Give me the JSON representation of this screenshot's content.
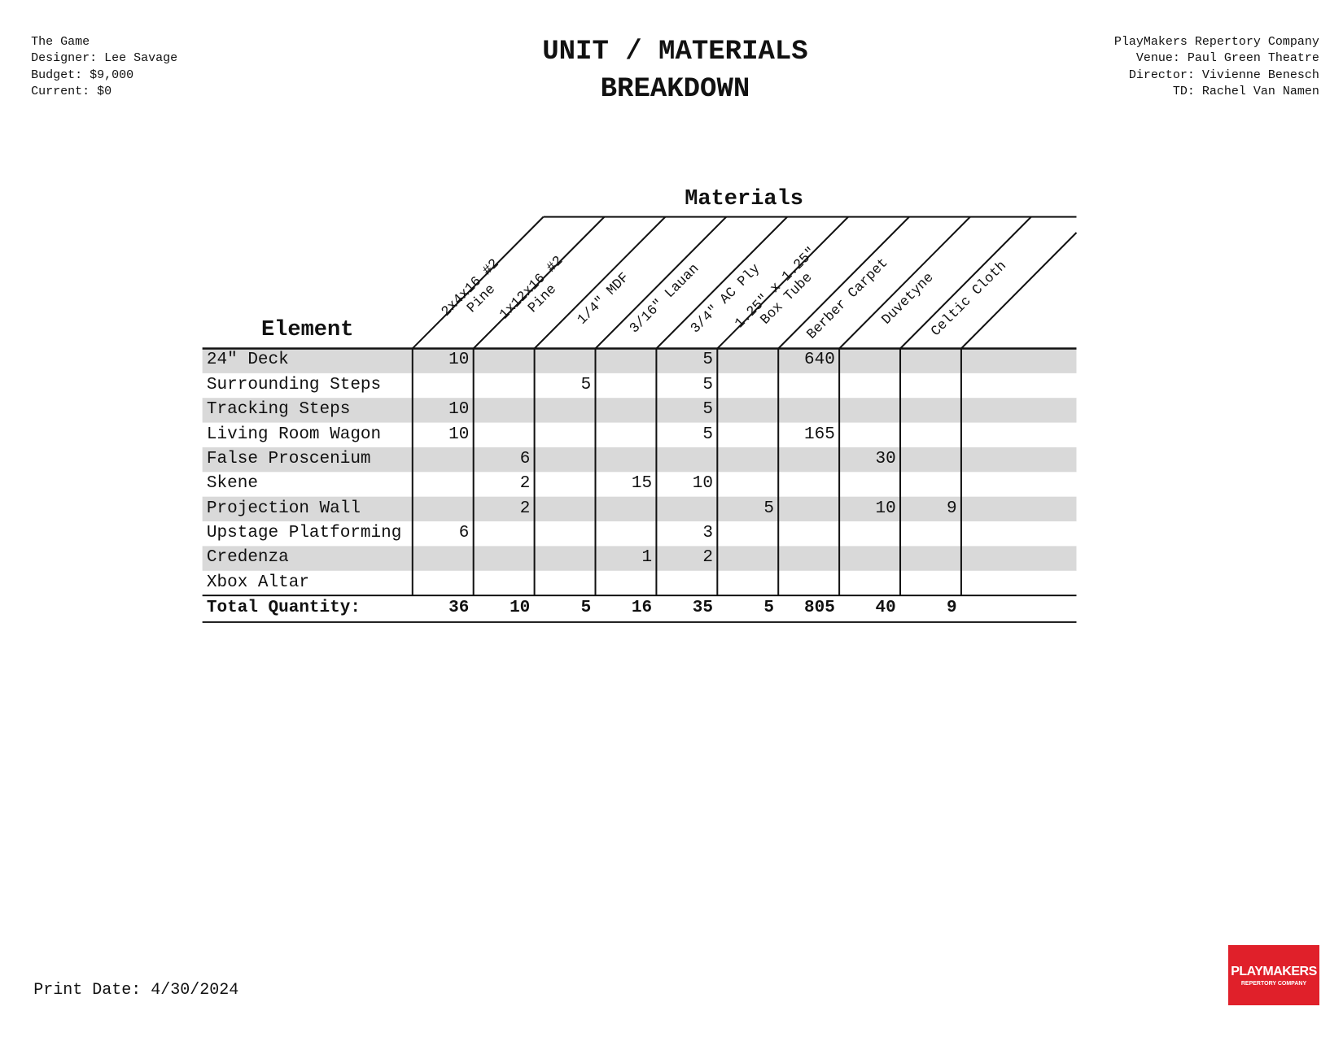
{
  "header": {
    "left": [
      "The Game",
      "Designer: Lee Savage",
      "Budget: $9,000",
      "Current: $0"
    ],
    "title": [
      "UNIT / MATERIALS",
      "BREAKDOWN"
    ],
    "right": [
      "PlayMakers Repertory Company",
      "Venue: Paul Green Theatre",
      "Director: Vivienne Benesch",
      "TD: Rachel Van Namen"
    ]
  },
  "table": {
    "materials_label": "Materials",
    "element_label": "Element",
    "columns": [
      "2x4x16 #2 Pine",
      "1x12x16 #2 Pine",
      "1/4\" MDF",
      "3/16\" Lauan",
      "3/4\" AC Ply",
      "1.25\" x 1.25\" Box Tube",
      "Berber Carpet",
      "Duvetyne",
      "Celtic Cloth"
    ],
    "rows": [
      {
        "element": "24\" Deck",
        "values": [
          10,
          null,
          null,
          null,
          5,
          null,
          640,
          null,
          null
        ]
      },
      {
        "element": "Surrounding Steps",
        "values": [
          null,
          null,
          5,
          null,
          5,
          null,
          null,
          null,
          null
        ]
      },
      {
        "element": "Tracking Steps",
        "values": [
          10,
          null,
          null,
          null,
          5,
          null,
          null,
          null,
          null
        ]
      },
      {
        "element": "Living Room Wagon",
        "values": [
          10,
          null,
          null,
          null,
          5,
          null,
          165,
          null,
          null
        ]
      },
      {
        "element": "False Proscenium",
        "values": [
          null,
          6,
          null,
          null,
          null,
          null,
          null,
          30,
          null
        ]
      },
      {
        "element": "Skene",
        "values": [
          null,
          2,
          null,
          15,
          10,
          null,
          null,
          null,
          null
        ]
      },
      {
        "element": "Projection Wall",
        "values": [
          null,
          2,
          null,
          null,
          null,
          5,
          null,
          10,
          9
        ]
      },
      {
        "element": "Upstage Platforming",
        "values": [
          6,
          null,
          null,
          null,
          3,
          null,
          null,
          null,
          null
        ]
      },
      {
        "element": "Credenza",
        "values": [
          null,
          null,
          null,
          1,
          2,
          null,
          null,
          null,
          null
        ]
      },
      {
        "element": "Xbox Altar",
        "values": [
          null,
          null,
          null,
          null,
          null,
          null,
          null,
          null,
          null
        ]
      }
    ],
    "total_label": "Total Quantity:",
    "totals": [
      36,
      10,
      5,
      16,
      35,
      5,
      805,
      40,
      9
    ]
  },
  "footer": {
    "print_date": "Print Date: 4/30/2024",
    "logo": [
      "PLAYMAKERS",
      "REPERTORY COMPANY"
    ]
  }
}
